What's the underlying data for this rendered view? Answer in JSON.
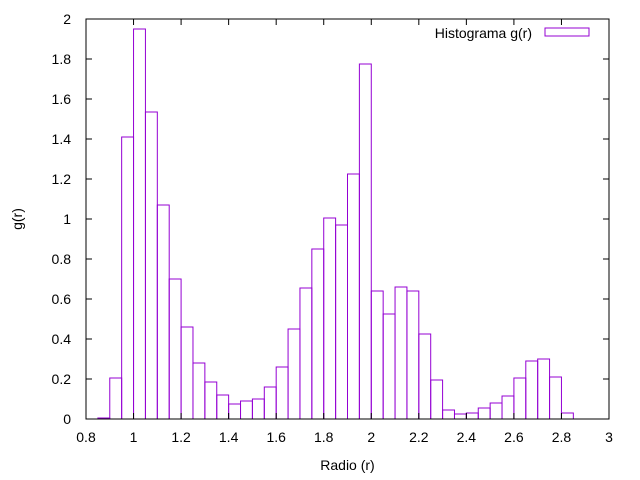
{
  "chart_data": {
    "type": "bar",
    "xlabel": "Radio (r)",
    "ylabel": "g(r)",
    "legend": "Histograma g(r)",
    "legend_position": "top-right",
    "xlim": [
      0.8,
      3
    ],
    "ylim": [
      0,
      2
    ],
    "xticks": [
      "0.8",
      "1",
      "1.2",
      "1.4",
      "1.6",
      "1.8",
      "2",
      "2.2",
      "2.4",
      "2.6",
      "2.8",
      "3"
    ],
    "yticks": [
      "0",
      "0.2",
      "0.4",
      "0.6",
      "0.8",
      "1",
      "1.2",
      "1.4",
      "1.6",
      "1.8",
      "2"
    ],
    "bin_width": 0.05,
    "bin_start": 0.85,
    "values": [
      0.005,
      0.205,
      1.41,
      1.95,
      1.535,
      1.07,
      0.7,
      0.46,
      0.28,
      0.185,
      0.12,
      0.075,
      0.09,
      0.1,
      0.16,
      0.26,
      0.45,
      0.655,
      0.85,
      1.005,
      0.97,
      1.225,
      1.775,
      0.64,
      0.525,
      0.66,
      0.64,
      0.425,
      0.195,
      0.045,
      0.025,
      0.03,
      0.055,
      0.08,
      0.115,
      0.205,
      0.29,
      0.3,
      0.21,
      0.03
    ],
    "color": "#9400d3",
    "grid": false
  }
}
